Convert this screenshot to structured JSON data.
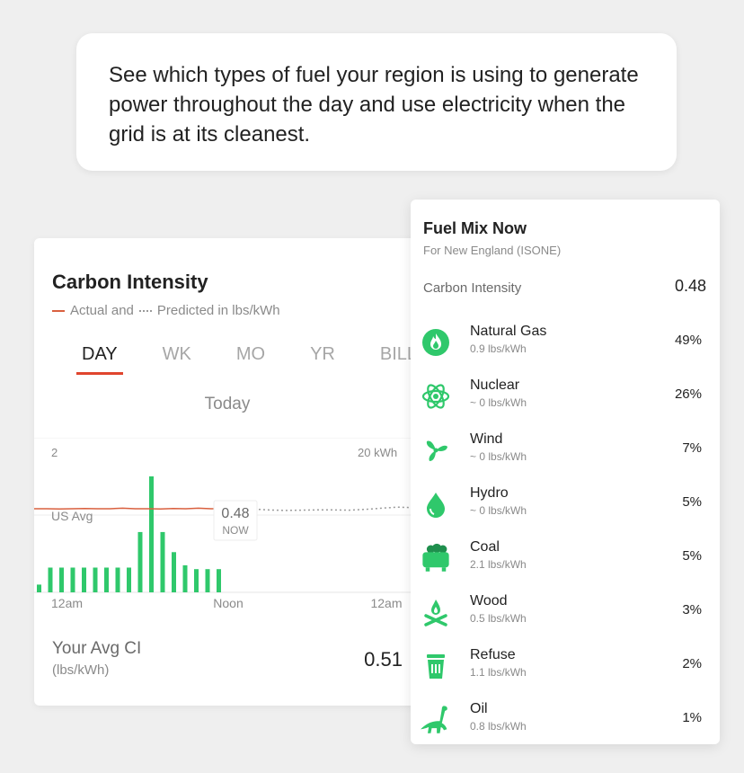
{
  "intro_text": "See which types of fuel your region is using to generate power throughout the day and use electricity when the grid is at its cleanest.",
  "carbon_card": {
    "title": "Carbon Intensity",
    "legend_actual": "Actual and",
    "legend_predicted": "Predicted in lbs/kWh",
    "tabs": [
      "DAY",
      "WK",
      "MO",
      "YR",
      "BILL"
    ],
    "active_tab": "DAY",
    "period_label": "Today",
    "your_avg_label": "Your Avg CI",
    "your_avg_unit": "(lbs/kWh)",
    "your_avg_value": "0.51"
  },
  "chart_data": {
    "type": "bar",
    "left_axis_top_label": "2",
    "right_axis_top_label": "20 kWh",
    "reference_label": "US Avg",
    "x_tick_labels": [
      "12am",
      "Noon",
      "12am"
    ],
    "now_value": "0.48",
    "now_label": "NOW",
    "usage_bars_kwh": [
      1.0,
      3.2,
      3.2,
      3.2,
      3.2,
      3.2,
      3.2,
      3.2,
      3.2,
      7.8,
      15.0,
      7.8,
      5.2,
      3.5,
      3.0,
      3.0,
      3.0
    ],
    "actual_ci_line": [
      1.0,
      1.0,
      0.99,
      1.0,
      1.01,
      1.0,
      1.0,
      1.02,
      1.0,
      1.0,
      0.99,
      1.01,
      1.0,
      1.02,
      1.0,
      1.0,
      1.01
    ],
    "predicted_ci_line": [
      1.01,
      0.99,
      0.96,
      0.94,
      0.95,
      0.96,
      0.96,
      0.95,
      0.98,
      1.02,
      1.06,
      1.04,
      1.04
    ],
    "colors": {
      "bars": "#2fc86b",
      "actual": "#d9603f",
      "predicted": "#9a9a9a"
    }
  },
  "fuel_mix": {
    "title": "Fuel Mix Now",
    "subtitle": "For New England (ISONE)",
    "ci_label": "Carbon Intensity",
    "ci_value": "0.48",
    "accent_color": "#2fc86b",
    "fuels": [
      {
        "name": "Natural Gas",
        "rate": "0.9 lbs/kWh",
        "pct": "49%",
        "icon": "flame-icon"
      },
      {
        "name": "Nuclear",
        "rate": "~ 0 lbs/kWh",
        "pct": "26%",
        "icon": "atom-icon"
      },
      {
        "name": "Wind",
        "rate": "~ 0 lbs/kWh",
        "pct": "7%",
        "icon": "fan-icon"
      },
      {
        "name": "Hydro",
        "rate": "~ 0 lbs/kWh",
        "pct": "5%",
        "icon": "water-drop-icon"
      },
      {
        "name": "Coal",
        "rate": "2.1 lbs/kWh",
        "pct": "5%",
        "icon": "coal-cart-icon"
      },
      {
        "name": "Wood",
        "rate": "0.5 lbs/kWh",
        "pct": "3%",
        "icon": "campfire-icon"
      },
      {
        "name": "Refuse",
        "rate": "1.1 lbs/kWh",
        "pct": "2%",
        "icon": "trash-bin-icon"
      },
      {
        "name": "Oil",
        "rate": "0.8 lbs/kWh",
        "pct": "1%",
        "icon": "dinosaur-icon"
      }
    ]
  }
}
